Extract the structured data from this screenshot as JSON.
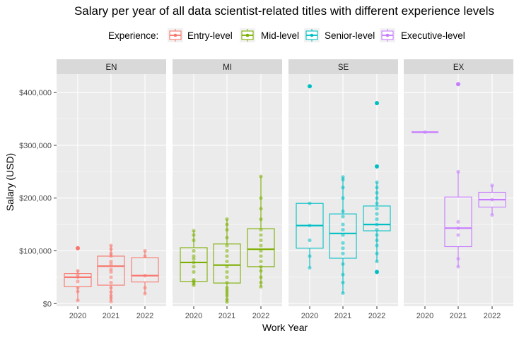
{
  "chart_data": {
    "type": "boxplot",
    "title": "Salary per year of all data scientist-related titles with different experience levels",
    "xlabel": "Work Year",
    "ylabel": "Salary (USD)",
    "ylim": [
      -5000,
      435000
    ],
    "yticks": [
      0,
      100000,
      200000,
      300000,
      400000
    ],
    "ytick_labels": [
      "$0",
      "$100,000",
      "$200,000",
      "$300,000",
      "$400,000"
    ],
    "categories": [
      "2020",
      "2021",
      "2022"
    ],
    "legend": {
      "title": "Experience:",
      "position": "top",
      "entries": [
        {
          "label": "Entry-level",
          "color": "#F8766D"
        },
        {
          "label": "Mid-level",
          "color": "#7CAE00"
        },
        {
          "label": "Senior-level",
          "color": "#00BFC4"
        },
        {
          "label": "Executive-level",
          "color": "#C77CFF"
        }
      ]
    },
    "panels": [
      {
        "strip": "EN",
        "color": "#F8766D",
        "boxes": [
          {
            "x": "2020",
            "q1": 32000,
            "median": 50000,
            "q3": 57000,
            "min": 6000,
            "max": 63000,
            "outliers": [
              105000
            ],
            "points": [
              6000,
              23000,
              30000,
              42000,
              50000,
              55000,
              62000
            ]
          },
          {
            "x": "2021",
            "q1": 35000,
            "median": 71000,
            "q3": 90000,
            "min": 4000,
            "max": 110000,
            "outliers": [],
            "points": [
              4000,
              10000,
              15000,
              22000,
              30000,
              40000,
              50000,
              60000,
              65000,
              75000,
              80000,
              90000,
              95000,
              103000,
              110000
            ]
          },
          {
            "x": "2022",
            "q1": 41000,
            "median": 53000,
            "q3": 87000,
            "min": 19000,
            "max": 100000,
            "outliers": [],
            "points": [
              19000,
              30000,
              53000,
              90000,
              100000
            ]
          }
        ]
      },
      {
        "strip": "MI",
        "color": "#7CAE00",
        "boxes": [
          {
            "x": "2020",
            "q1": 42000,
            "median": 78000,
            "q3": 106000,
            "min": 35000,
            "max": 138000,
            "outliers": [],
            "points": [
              35000,
              38000,
              42000,
              45000,
              60000,
              70000,
              78000,
              85000,
              90000,
              100000,
              120000,
              130000,
              138000
            ]
          },
          {
            "x": "2021",
            "q1": 39000,
            "median": 73000,
            "q3": 113000,
            "min": 3000,
            "max": 160000,
            "outliers": [],
            "points": [
              3000,
              8000,
              15000,
              20000,
              25000,
              30000,
              40000,
              50000,
              60000,
              70000,
              80000,
              90000,
              100000,
              110000,
              125000,
              140000,
              150000,
              160000
            ]
          },
          {
            "x": "2022",
            "q1": 70000,
            "median": 103000,
            "q3": 142000,
            "min": 32000,
            "max": 241000,
            "outliers": [],
            "points": [
              32000,
              40000,
              50000,
              62000,
              70000,
              80000,
              90000,
              100000,
              110000,
              120000,
              130000,
              140000,
              160000,
              180000,
              200000,
              241000
            ]
          }
        ]
      },
      {
        "strip": "SE",
        "color": "#00BFC4",
        "boxes": [
          {
            "x": "2020",
            "q1": 105000,
            "median": 148000,
            "q3": 190000,
            "min": 68000,
            "max": 190000,
            "outliers": [
              412000
            ],
            "points": [
              68000,
              90000,
              120000,
              148000,
              190000
            ]
          },
          {
            "x": "2021",
            "q1": 86000,
            "median": 133000,
            "q3": 170000,
            "min": 20000,
            "max": 240000,
            "outliers": [],
            "points": [
              20000,
              40000,
              55000,
              75000,
              95000,
              105000,
              115000,
              130000,
              140000,
              150000,
              165000,
              175000,
              200000,
              220000,
              235000,
              240000
            ]
          },
          {
            "x": "2022",
            "q1": 138000,
            "median": 150000,
            "q3": 185000,
            "min": 80000,
            "max": 230000,
            "outliers": [
              60000,
              260000,
              380000
            ],
            "points": [
              80000,
              95000,
              110000,
              120000,
              130000,
              140000,
              150000,
              160000,
              170000,
              180000,
              190000,
              200000,
              210000,
              220000,
              230000
            ]
          }
        ]
      },
      {
        "strip": "EX",
        "color": "#C77CFF",
        "boxes": [
          {
            "x": "2020",
            "q1": 325000,
            "median": 325000,
            "q3": 325000,
            "min": 325000,
            "max": 325000,
            "outliers": [],
            "points": [
              325000
            ]
          },
          {
            "x": "2021",
            "q1": 108000,
            "median": 143000,
            "q3": 202000,
            "min": 70000,
            "max": 250000,
            "outliers": [
              416000
            ],
            "points": [
              70000,
              85000,
              130000,
              143000,
              155000,
              250000
            ]
          },
          {
            "x": "2022",
            "q1": 183000,
            "median": 197000,
            "q3": 211000,
            "min": 168000,
            "max": 224000,
            "outliers": [],
            "points": [
              168000,
              197000,
              224000
            ]
          }
        ]
      }
    ]
  }
}
